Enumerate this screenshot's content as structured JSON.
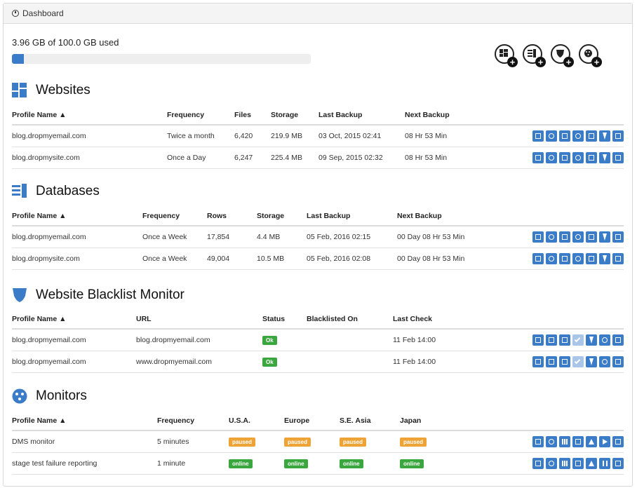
{
  "header": {
    "title": "Dashboard"
  },
  "usage": {
    "text": "3.96 GB of 100.0 GB used",
    "fraction": 0.0396
  },
  "add_icons": [
    "add-website-icon",
    "add-database-icon",
    "add-blacklist-monitor-icon",
    "add-monitor-icon"
  ],
  "colors": {
    "accent": "#3a7cc7",
    "ok": "#3aa63e",
    "paused": "#eea336"
  },
  "websites": {
    "title": "Websites",
    "columns": [
      "Profile Name ▲",
      "Frequency",
      "Files",
      "Storage",
      "Last Backup",
      "Next Backup"
    ],
    "rows": [
      [
        "blog.dropmyemail.com",
        "Twice a month",
        "6,420",
        "219.9 MB",
        "03 Oct, 2015 02:41",
        "08 Hr 53 Min"
      ],
      [
        "blog.dropmysite.com",
        "Once a Day",
        "6,247",
        "225.4 MB",
        "09 Sep, 2015 02:32",
        "08 Hr 53 Min"
      ]
    ]
  },
  "databases": {
    "title": "Databases",
    "columns": [
      "Profile Name ▲",
      "Frequency",
      "Rows",
      "Storage",
      "Last Backup",
      "Next Backup"
    ],
    "rows": [
      [
        "blog.dropmyemail.com",
        "Once a Week",
        "17,854",
        "4.4 MB",
        "05 Feb, 2016 02:15",
        "00 Day 08 Hr 53 Min"
      ],
      [
        "blog.dropmysite.com",
        "Once a Week",
        "49,004",
        "10.5 MB",
        "05 Feb, 2016 02:08",
        "00 Day 08 Hr 53 Min"
      ]
    ]
  },
  "blacklist": {
    "title": "Website Blacklist Monitor",
    "columns": [
      "Profile Name ▲",
      "URL",
      "Status",
      "Blacklisted On",
      "Last Check"
    ],
    "rows": [
      [
        "blog.dropmyemail.com",
        "blog.dropmyemail.com",
        "Ok",
        "",
        "11 Feb 14:00"
      ],
      [
        "blog.dropmyemail.com",
        "www.dropmyemail.com",
        "Ok",
        "",
        "11 Feb 14:00"
      ]
    ]
  },
  "monitors": {
    "title": "Monitors",
    "columns": [
      "Profile Name ▲",
      "Frequency",
      "U.S.A.",
      "Europe",
      "S.E. Asia",
      "Japan"
    ],
    "rows": [
      [
        "DMS monitor",
        "5 minutes",
        "paused",
        "paused",
        "paused",
        "paused"
      ],
      [
        "stage test failure reporting",
        "1 minute",
        "online",
        "online",
        "online",
        "online"
      ]
    ]
  }
}
